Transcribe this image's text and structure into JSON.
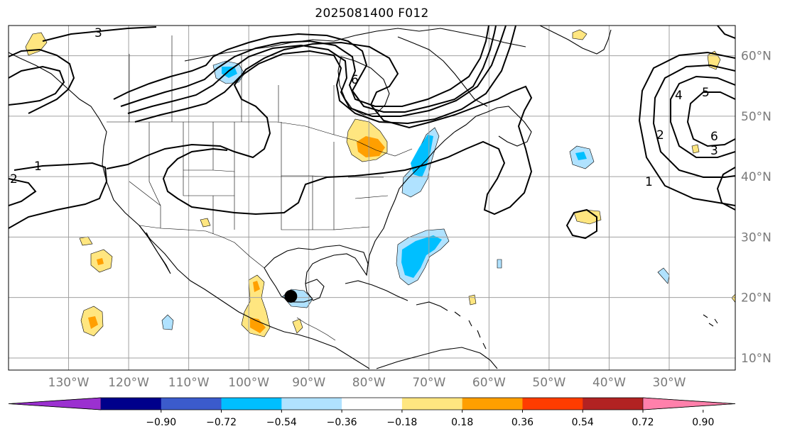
{
  "title": "2025081400 F012",
  "map": {
    "projection": "Plate Carrée",
    "extent": {
      "lon_min": -140,
      "lon_max": -19,
      "lat_min": 8,
      "lat_max": 65
    },
    "gridlines": true,
    "lon_ticks": [
      {
        "lon": -130,
        "label": "130°W"
      },
      {
        "lon": -120,
        "label": "120°W"
      },
      {
        "lon": -110,
        "label": "110°W"
      },
      {
        "lon": -100,
        "label": "100°W"
      },
      {
        "lon": -90,
        "label": "90°W"
      },
      {
        "lon": -80,
        "label": "80°W"
      },
      {
        "lon": -70,
        "label": "70°W"
      },
      {
        "lon": -60,
        "label": "60°W"
      },
      {
        "lon": -50,
        "label": "50°W"
      },
      {
        "lon": -40,
        "label": "40°W"
      },
      {
        "lon": -30,
        "label": "30°W"
      }
    ],
    "lat_ticks": [
      {
        "lat": 60,
        "label": "60°N"
      },
      {
        "lat": 50,
        "label": "50°N"
      },
      {
        "lat": 40,
        "label": "40°N"
      },
      {
        "lat": 30,
        "label": "30°N"
      },
      {
        "lat": 20,
        "label": "20°N"
      },
      {
        "lat": 10,
        "label": "10°N"
      }
    ],
    "contour_labels": [
      "1",
      "2",
      "3",
      "4",
      "5",
      "6"
    ],
    "marker": {
      "name": "storm-center",
      "lon": -93,
      "lat": 20.2,
      "color": "#000000"
    }
  },
  "colorbar": {
    "extend": "both",
    "bins": [
      {
        "color": "#9b30d0"
      },
      {
        "color": "#00008b"
      },
      {
        "color": "#3b5bcc"
      },
      {
        "color": "#00bfff"
      },
      {
        "color": "#b0e2ff"
      },
      {
        "color": "#ffffff"
      },
      {
        "color": "#ffe680"
      },
      {
        "color": "#ff9f00"
      },
      {
        "color": "#ff3c00"
      },
      {
        "color": "#b22222"
      },
      {
        "color": "#ff80ab"
      }
    ],
    "tick_labels": [
      "−0.90",
      "−0.72",
      "−0.54",
      "−0.36",
      "−0.18",
      "0.18",
      "0.36",
      "0.54",
      "0.72",
      "0.90"
    ]
  },
  "colors": {
    "gridline": "#a0a0a0",
    "coast": "#000000",
    "contour": "#000000",
    "axis_label": "#7a7a7a"
  }
}
